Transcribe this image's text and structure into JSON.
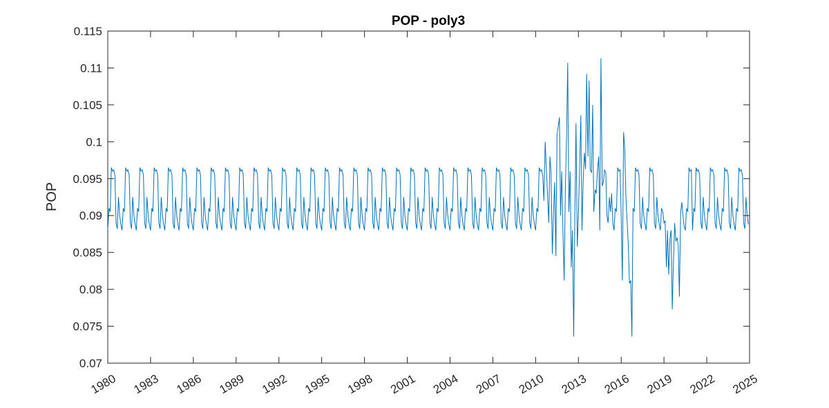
{
  "chart_data": {
    "type": "line",
    "title": "POP - poly3",
    "xlabel": "",
    "ylabel": "POP",
    "xlim": [
      1980,
      2025
    ],
    "ylim": [
      0.07,
      0.115
    ],
    "xticks": [
      1980,
      1983,
      1986,
      1989,
      1992,
      1995,
      1998,
      2001,
      2004,
      2007,
      2010,
      2013,
      2016,
      2019,
      2022,
      2025
    ],
    "xtick_labels": [
      "1980",
      "1983",
      "1986",
      "1989",
      "1992",
      "1995",
      "1998",
      "2001",
      "2004",
      "2007",
      "2010",
      "2013",
      "2016",
      "2019",
      "2022",
      "2025"
    ],
    "yticks": [
      0.07,
      0.075,
      0.08,
      0.085,
      0.09,
      0.095,
      0.1,
      0.105,
      0.11,
      0.115
    ],
    "ytick_labels": [
      "0.07",
      "0.075",
      "0.08",
      "0.085",
      "0.09",
      "0.095",
      "0.1",
      "0.105",
      "0.11",
      "0.115"
    ],
    "grid": false,
    "line_color": "#0072BD",
    "series": [
      {
        "name": "POP",
        "seasonal_pattern": [
          0.088,
          0.091,
          0.0905,
          0.0965,
          0.096,
          0.0962,
          0.0955,
          0.089,
          0.0882,
          0.0925,
          0.09,
          0.0888
        ],
        "pattern_start": 1980,
        "pattern_end": 2010.5,
        "monthly_step": 0.0833333,
        "anomaly_points": [
          [
            2010.5,
            0.0955
          ],
          [
            2010.58,
            0.092
          ],
          [
            2010.67,
            0.1
          ],
          [
            2010.75,
            0.0965
          ],
          [
            2010.83,
            0.093
          ],
          [
            2010.92,
            0.089
          ],
          [
            2011.0,
            0.098
          ],
          [
            2011.08,
            0.096
          ],
          [
            2011.17,
            0.0848
          ],
          [
            2011.25,
            0.09
          ],
          [
            2011.33,
            0.0945
          ],
          [
            2011.42,
            0.0845
          ],
          [
            2011.5,
            0.101
          ],
          [
            2011.58,
            0.102
          ],
          [
            2011.67,
            0.1033
          ],
          [
            2011.75,
            0.09
          ],
          [
            2011.83,
            0.096
          ],
          [
            2011.92,
            0.0875
          ],
          [
            2012.0,
            0.0812
          ],
          [
            2012.08,
            0.093
          ],
          [
            2012.17,
            0.101
          ],
          [
            2012.25,
            0.1107
          ],
          [
            2012.33,
            0.0905
          ],
          [
            2012.42,
            0.096
          ],
          [
            2012.5,
            0.083
          ],
          [
            2012.58,
            0.088
          ],
          [
            2012.67,
            0.0736
          ],
          [
            2012.75,
            0.09
          ],
          [
            2012.83,
            0.1025
          ],
          [
            2012.92,
            0.0858
          ],
          [
            2013.0,
            0.09
          ],
          [
            2013.08,
            0.096
          ],
          [
            2013.17,
            0.1036
          ],
          [
            2013.25,
            0.088
          ],
          [
            2013.33,
            0.0945
          ],
          [
            2013.42,
            0.0985
          ],
          [
            2013.5,
            0.0963
          ],
          [
            2013.58,
            0.1092
          ],
          [
            2013.67,
            0.098
          ],
          [
            2013.75,
            0.1083
          ],
          [
            2013.83,
            0.0962
          ],
          [
            2013.92,
            0.0958
          ],
          [
            2014.0,
            0.105
          ],
          [
            2014.08,
            0.0905
          ],
          [
            2014.17,
            0.0935
          ],
          [
            2014.25,
            0.093
          ],
          [
            2014.33,
            0.096
          ],
          [
            2014.42,
            0.098
          ],
          [
            2014.5,
            0.088
          ],
          [
            2014.58,
            0.1113
          ],
          [
            2014.67,
            0.094
          ],
          [
            2014.75,
            0.0945
          ],
          [
            2014.83,
            0.0962
          ],
          [
            2014.92,
            0.0958
          ],
          [
            2015.0,
            0.09
          ],
          [
            2015.08,
            0.089
          ],
          [
            2015.17,
            0.0925
          ],
          [
            2015.25,
            0.0905
          ],
          [
            2015.33,
            0.093
          ],
          [
            2015.42,
            0.0888
          ],
          [
            2015.5,
            0.088
          ],
          [
            2015.58,
            0.091
          ],
          [
            2015.67,
            0.0905
          ],
          [
            2015.75,
            0.0965
          ],
          [
            2015.83,
            0.096
          ],
          [
            2015.92,
            0.0962
          ],
          [
            2016.0,
            0.09
          ],
          [
            2016.08,
            0.0812
          ],
          [
            2016.17,
            0.1013
          ],
          [
            2016.25,
            0.099
          ],
          [
            2016.33,
            0.0925
          ],
          [
            2016.42,
            0.089
          ],
          [
            2016.5,
            0.086
          ],
          [
            2016.58,
            0.0808
          ],
          [
            2016.67,
            0.0812
          ],
          [
            2016.75,
            0.0736
          ],
          [
            2016.83,
            0.091
          ],
          [
            2016.92,
            0.0905
          ],
          [
            2017.0,
            0.0965
          ],
          [
            2017.08,
            0.096
          ],
          [
            2017.17,
            0.0962
          ],
          [
            2017.25,
            0.0955
          ],
          [
            2017.33,
            0.089
          ],
          [
            2017.42,
            0.0882
          ],
          [
            2017.5,
            0.0925
          ],
          [
            2017.58,
            0.09
          ],
          [
            2017.67,
            0.0888
          ],
          [
            2017.75,
            0.088
          ],
          [
            2017.83,
            0.091
          ],
          [
            2017.92,
            0.0905
          ],
          [
            2018.0,
            0.0965
          ],
          [
            2018.08,
            0.096
          ],
          [
            2018.17,
            0.0962
          ],
          [
            2018.25,
            0.0955
          ],
          [
            2018.33,
            0.089
          ],
          [
            2018.42,
            0.0882
          ],
          [
            2018.5,
            0.0925
          ],
          [
            2018.58,
            0.09
          ],
          [
            2018.67,
            0.0888
          ],
          [
            2018.75,
            0.088
          ],
          [
            2018.83,
            0.091
          ],
          [
            2018.92,
            0.0905
          ],
          [
            2019.0,
            0.089
          ],
          [
            2019.08,
            0.0893
          ],
          [
            2019.17,
            0.083
          ],
          [
            2019.25,
            0.088
          ],
          [
            2019.33,
            0.082
          ],
          [
            2019.42,
            0.087
          ],
          [
            2019.5,
            0.088
          ],
          [
            2019.58,
            0.0773
          ],
          [
            2019.67,
            0.084
          ],
          [
            2019.75,
            0.089
          ],
          [
            2019.83,
            0.0865
          ],
          [
            2019.92,
            0.087
          ],
          [
            2020.0,
            0.086
          ],
          [
            2020.08,
            0.079
          ],
          [
            2020.17,
            0.0905
          ],
          [
            2020.25,
            0.0918
          ],
          [
            2020.33,
            0.09
          ],
          [
            2020.42,
            0.0885
          ],
          [
            2020.5,
            0.088
          ],
          [
            2020.58,
            0.091
          ],
          [
            2020.67,
            0.0905
          ],
          [
            2020.75,
            0.0965
          ],
          [
            2020.83,
            0.096
          ],
          [
            2020.92,
            0.0962
          ]
        ],
        "tail_pattern_start": 2021,
        "tail_pattern_end": 2024.917
      }
    ]
  }
}
